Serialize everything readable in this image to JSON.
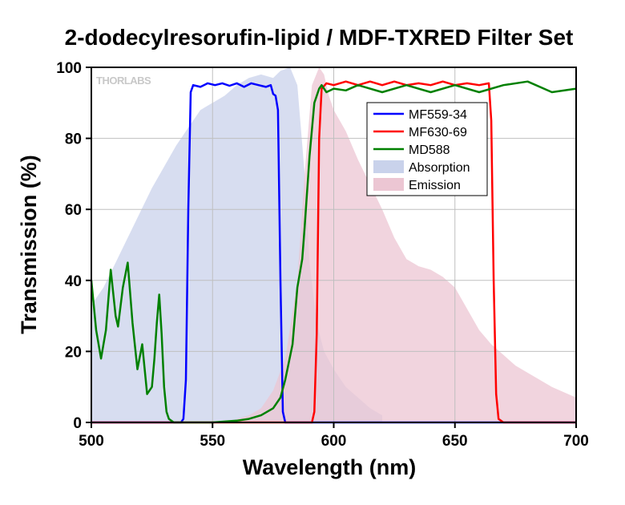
{
  "chart_data": {
    "type": "line",
    "title": "2-dodecylresorufin-lipid / MDF-TXRED Filter Set",
    "xlabel": "Wavelength (nm)",
    "ylabel": "Transmission (%)",
    "xlim": [
      500,
      700
    ],
    "ylim": [
      0,
      100
    ],
    "xticks": [
      500,
      550,
      600,
      650,
      700
    ],
    "yticks": [
      0,
      20,
      40,
      60,
      80,
      100
    ],
    "grid": true,
    "legend_position": "top-right",
    "watermark": "THORLABS",
    "series": [
      {
        "name": "MF559-34",
        "kind": "line",
        "color": "#0000ff",
        "x": [
          500,
          537,
          538,
          539,
          540,
          541,
          542,
          545,
          548,
          551,
          554,
          557,
          560,
          563,
          566,
          569,
          572,
          574,
          575,
          576,
          577,
          578,
          579,
          580,
          700
        ],
        "y": [
          0,
          0,
          1,
          12,
          60,
          93,
          95,
          94.5,
          95.5,
          95,
          95.5,
          94.8,
          95.5,
          94.5,
          95.5,
          95,
          94.5,
          95,
          92.5,
          92,
          88,
          40,
          3,
          0,
          0
        ]
      },
      {
        "name": "MF630-69",
        "kind": "line",
        "color": "#ff0000",
        "x": [
          500,
          591,
          592,
          593,
          594,
          595,
          597,
          600,
          605,
          610,
          615,
          620,
          625,
          630,
          635,
          640,
          645,
          650,
          655,
          660,
          664,
          665,
          666,
          667,
          668,
          670,
          700
        ],
        "y": [
          0,
          0,
          3,
          25,
          80,
          94,
          95.5,
          95,
          96,
          95,
          96,
          95,
          96,
          95,
          95.5,
          95,
          96,
          95,
          95.5,
          95,
          95.5,
          85,
          40,
          8,
          1,
          0,
          0
        ]
      },
      {
        "name": "MD588",
        "kind": "line",
        "color": "#008000",
        "x": [
          500,
          502,
          504,
          506,
          508,
          510,
          511,
          513,
          515,
          517,
          519,
          521,
          523,
          525,
          526,
          527,
          528,
          529,
          530,
          531,
          532,
          534,
          536,
          540,
          550,
          560,
          565,
          570,
          575,
          578,
          580,
          583,
          585,
          587,
          588,
          590,
          592,
          594,
          595,
          597,
          600,
          605,
          610,
          620,
          630,
          640,
          650,
          660,
          670,
          680,
          690,
          700
        ],
        "y": [
          40,
          26,
          18,
          26,
          43,
          30,
          27,
          38,
          45,
          28,
          15,
          22,
          8,
          10,
          18,
          28,
          36,
          25,
          10,
          3,
          1,
          0,
          0,
          0,
          0,
          0.5,
          1,
          2,
          4,
          7,
          12,
          22,
          38,
          46,
          55,
          75,
          90,
          94,
          95,
          93,
          94,
          93.5,
          95,
          93,
          95,
          93,
          95,
          93,
          95,
          96,
          93,
          94
        ]
      },
      {
        "name": "Absorption",
        "kind": "area",
        "color": "#c9d2eb",
        "x": [
          500,
          505,
          510,
          515,
          520,
          525,
          530,
          535,
          540,
          545,
          550,
          555,
          560,
          565,
          570,
          575,
          578,
          582,
          585,
          588,
          590,
          593,
          596,
          600,
          605,
          610,
          615,
          620
        ],
        "y": [
          33,
          38,
          45,
          52,
          59,
          66,
          72,
          78,
          83,
          88,
          90,
          92,
          95,
          97,
          98,
          97,
          99,
          100,
          95,
          70,
          45,
          28,
          20,
          15,
          10,
          7,
          4,
          2
        ]
      },
      {
        "name": "Emission",
        "kind": "area",
        "color": "#ecc6d3",
        "x": [
          560,
          565,
          570,
          575,
          580,
          585,
          588,
          591,
          594,
          596,
          598,
          600,
          605,
          610,
          615,
          620,
          625,
          630,
          635,
          640,
          645,
          650,
          655,
          660,
          665,
          670,
          675,
          680,
          690,
          700
        ],
        "y": [
          1,
          2,
          4,
          9,
          18,
          40,
          70,
          95,
          100,
          98,
          92,
          88,
          82,
          74,
          67,
          60,
          52,
          46,
          44,
          43,
          41,
          38,
          32,
          26,
          22,
          19,
          16,
          14,
          10,
          7
        ]
      }
    ]
  }
}
